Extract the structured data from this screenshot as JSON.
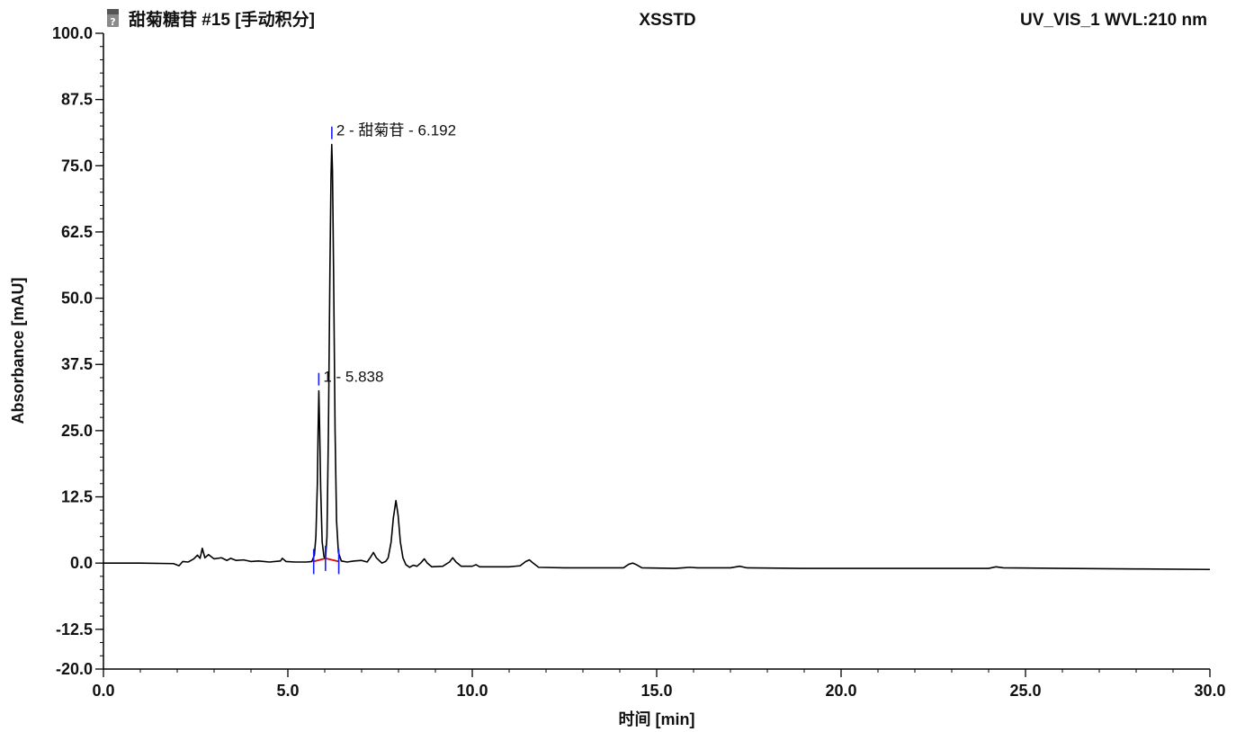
{
  "header": {
    "sample_title": "甜菊糖苷 #15 [手动积分]",
    "sequence_name": "XSSTD",
    "channel": "UV_VIS_1 WVL:210 nm",
    "icon": "question-document-icon"
  },
  "chart_data": {
    "type": "line",
    "title": "",
    "xlabel": "时间 [min]",
    "ylabel": "Absorbance [mAU]",
    "xlim": [
      0,
      30
    ],
    "ylim": [
      -20,
      100
    ],
    "x_ticks": [
      "0.0",
      "5.0",
      "10.0",
      "15.0",
      "20.0",
      "25.0",
      "30.0"
    ],
    "y_ticks": [
      "100.0",
      "87.5",
      "75.0",
      "62.5",
      "50.0",
      "37.5",
      "25.0",
      "12.5",
      "0.0",
      "-12.5",
      "-20.0"
    ],
    "grid": false,
    "line_color": "#000000",
    "baseline_color": "#e00000",
    "marker_color": "#1a1aff",
    "series": [
      {
        "points": [
          [
            0.0,
            0.0
          ],
          [
            1.0,
            0.0
          ],
          [
            1.9,
            -0.1
          ],
          [
            2.05,
            -0.5
          ],
          [
            2.15,
            0.3
          ],
          [
            2.3,
            0.2
          ],
          [
            2.45,
            0.8
          ],
          [
            2.55,
            1.5
          ],
          [
            2.62,
            0.9
          ],
          [
            2.68,
            2.8
          ],
          [
            2.75,
            1.0
          ],
          [
            2.85,
            1.6
          ],
          [
            3.0,
            0.8
          ],
          [
            3.2,
            1.0
          ],
          [
            3.35,
            0.5
          ],
          [
            3.45,
            0.9
          ],
          [
            3.6,
            0.5
          ],
          [
            3.8,
            0.6
          ],
          [
            4.0,
            0.3
          ],
          [
            4.2,
            0.4
          ],
          [
            4.5,
            0.2
          ],
          [
            4.8,
            0.4
          ],
          [
            4.85,
            0.9
          ],
          [
            4.95,
            0.3
          ],
          [
            5.2,
            0.2
          ],
          [
            5.5,
            0.2
          ],
          [
            5.65,
            0.3
          ],
          [
            5.72,
            1.5
          ],
          [
            5.76,
            5.0
          ],
          [
            5.8,
            15.0
          ],
          [
            5.82,
            25.0
          ],
          [
            5.84,
            32.5
          ],
          [
            5.86,
            26.0
          ],
          [
            5.89,
            14.0
          ],
          [
            5.93,
            4.0
          ],
          [
            5.98,
            1.2
          ],
          [
            6.02,
            0.8
          ],
          [
            6.06,
            5.0
          ],
          [
            6.1,
            25.0
          ],
          [
            6.14,
            55.0
          ],
          [
            6.17,
            73.0
          ],
          [
            6.19,
            79.0
          ],
          [
            6.21,
            74.0
          ],
          [
            6.24,
            55.0
          ],
          [
            6.28,
            25.0
          ],
          [
            6.32,
            8.0
          ],
          [
            6.37,
            2.0
          ],
          [
            6.45,
            0.4
          ],
          [
            6.6,
            0.2
          ],
          [
            6.8,
            0.4
          ],
          [
            7.0,
            0.5
          ],
          [
            7.15,
            0.2
          ],
          [
            7.25,
            1.2
          ],
          [
            7.32,
            2.0
          ],
          [
            7.4,
            1.0
          ],
          [
            7.55,
            0.0
          ],
          [
            7.65,
            0.3
          ],
          [
            7.72,
            1.0
          ],
          [
            7.8,
            4.0
          ],
          [
            7.86,
            8.5
          ],
          [
            7.93,
            11.8
          ],
          [
            7.99,
            9.0
          ],
          [
            8.05,
            4.0
          ],
          [
            8.12,
            1.0
          ],
          [
            8.2,
            -0.3
          ],
          [
            8.3,
            -0.8
          ],
          [
            8.4,
            -0.4
          ],
          [
            8.5,
            -0.6
          ],
          [
            8.6,
            0.0
          ],
          [
            8.7,
            0.8
          ],
          [
            8.78,
            0.0
          ],
          [
            8.9,
            -0.7
          ],
          [
            9.2,
            -0.6
          ],
          [
            9.38,
            0.2
          ],
          [
            9.47,
            1.0
          ],
          [
            9.56,
            0.2
          ],
          [
            9.7,
            -0.6
          ],
          [
            10.0,
            -0.6
          ],
          [
            10.1,
            -0.3
          ],
          [
            10.2,
            -0.7
          ],
          [
            11.0,
            -0.7
          ],
          [
            11.3,
            -0.5
          ],
          [
            11.45,
            0.3
          ],
          [
            11.55,
            0.6
          ],
          [
            11.65,
            0.0
          ],
          [
            11.8,
            -0.8
          ],
          [
            12.5,
            -0.9
          ],
          [
            13.5,
            -0.9
          ],
          [
            14.1,
            -0.9
          ],
          [
            14.25,
            -0.2
          ],
          [
            14.35,
            0.0
          ],
          [
            14.45,
            -0.3
          ],
          [
            14.6,
            -0.9
          ],
          [
            15.5,
            -1.0
          ],
          [
            15.9,
            -0.8
          ],
          [
            16.1,
            -0.9
          ],
          [
            17.0,
            -0.9
          ],
          [
            17.25,
            -0.6
          ],
          [
            17.45,
            -0.9
          ],
          [
            19.0,
            -1.0
          ],
          [
            21.0,
            -1.0
          ],
          [
            23.0,
            -1.0
          ],
          [
            24.0,
            -1.0
          ],
          [
            24.2,
            -0.7
          ],
          [
            24.4,
            -0.9
          ],
          [
            26.0,
            -1.0
          ],
          [
            28.0,
            -1.1
          ],
          [
            30.0,
            -1.2
          ]
        ]
      }
    ],
    "integration_baselines": [
      {
        "from": [
          5.7,
          0.3
        ],
        "to": [
          6.02,
          0.9
        ]
      },
      {
        "from": [
          6.02,
          0.9
        ],
        "to": [
          6.38,
          0.3
        ]
      }
    ],
    "peak_markers": [
      {
        "x": 5.7,
        "y": 0.3
      },
      {
        "x": 6.02,
        "y": 0.9
      },
      {
        "x": 6.38,
        "y": 0.3
      }
    ],
    "peaks": [
      {
        "number": "1",
        "rt": "5.838",
        "height": 32.5,
        "label": "1 - 5.838"
      },
      {
        "number": "2",
        "name": "甜菊苷",
        "rt": "6.192",
        "height": 79.0,
        "label": "2 - 甜菊苷 - 6.192"
      }
    ]
  }
}
